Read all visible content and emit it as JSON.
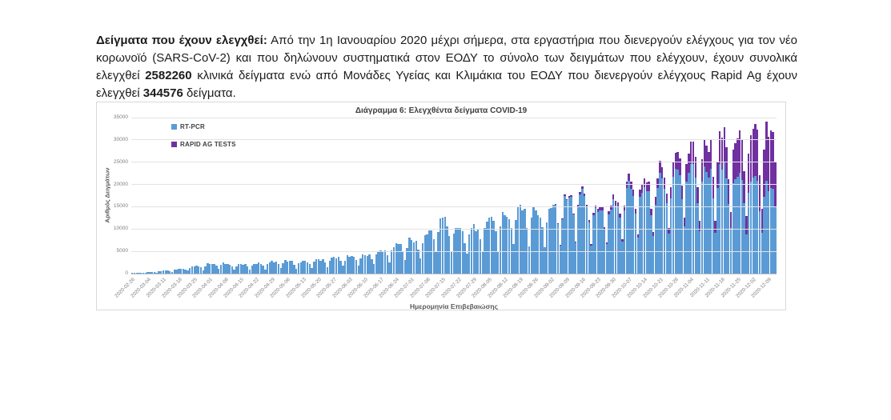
{
  "intro": {
    "segments": [
      {
        "text": "Δείγματα που έχουν ελεγχθεί:",
        "bold": true
      },
      {
        "text": " Από την 1η Ιανουαρίου 2020 μέχρι σήμερα, στα εργαστήρια που διενεργούν ελέγχους για τον νέο κορωνοϊό (SARS-CoV-2) και που δηλώνουν συστηματικά στον ΕΟΔΥ το σύνολο των δειγμάτων που ελέγχουν, έχουν συνολικά ελεγχθεί ",
        "bold": false
      },
      {
        "text": "2582260",
        "bold": true
      },
      {
        "text": " κλινικά δείγματα ενώ από Μονάδες Υγείας και Κλιμάκια του ΕΟΔΥ που διενεργούν ελέγχους Rapid Ag έχουν ελεγχθεί ",
        "bold": false
      },
      {
        "text": "344576",
        "bold": true
      },
      {
        "text": " δείγματα.",
        "bold": false
      }
    ]
  },
  "chart_data": {
    "type": "bar",
    "stacked": true,
    "title": "Διάγραμμα 6: Ελεγχθέντα δείγματα COVID-19",
    "xlabel": "Ημερομηνία Επιβεβαιώσης",
    "ylabel": "Αριθμός Δειγμάτων",
    "ylim": [
      0,
      35000
    ],
    "ytick_step": 5000,
    "grid": "horizontal",
    "legend_position": "top-left-inside",
    "x_start_date": "2020-02-26",
    "x_frequency": "daily bars, weekly tick labels",
    "days": 291,
    "start_weekday": 3,
    "weekday_multipliers": [
      0.42,
      0.82,
      1.0,
      1.0,
      0.97,
      0.93,
      0.72
    ],
    "x_tick_labels": [
      "2020-02-26",
      "2020-03-04",
      "2020-03-11",
      "2020-03-18",
      "2020-03-25",
      "2020-04-01",
      "2020-04-08",
      "2020-04-15",
      "2020-04-22",
      "2020-04-29",
      "2020-05-06",
      "2020-05-13",
      "2020-05-20",
      "2020-05-27",
      "2020-06-03",
      "2020-06-10",
      "2020-06-17",
      "2020-06-24",
      "2020-07-01",
      "2020-07-08",
      "2020-07-15",
      "2020-07-22",
      "2020-07-29",
      "2020-08-05",
      "2020-08-12",
      "2020-08-19",
      "2020-08-26",
      "2020-09-02",
      "2020-09-09",
      "2020-09-16",
      "2020-09-23",
      "2020-09-30",
      "2020-10-07",
      "2020-10-14",
      "2020-10-21",
      "2020-10-28",
      "2020-11-04",
      "2020-11-11",
      "2020-11-18",
      "2020-11-25",
      "2020-12-02",
      "2020-12-09"
    ],
    "series": [
      {
        "name": "RT-PCR",
        "color": "#5B9BD5",
        "weekly_values": [
          150,
          300,
          700,
          1100,
          1700,
          2200,
          2300,
          2100,
          2300,
          2600,
          3000,
          2700,
          3200,
          3600,
          4000,
          4300,
          5200,
          6500,
          7500,
          9000,
          13500,
          9800,
          10500,
          12000,
          13500,
          15500,
          14500,
          15500,
          16500,
          18500,
          14800,
          15500,
          20500,
          19000,
          21000,
          22000,
          24500,
          23000,
          24500,
          22500,
          21500,
          19500
        ]
      },
      {
        "name": "RAPID AG TESTS",
        "color": "#7030A0",
        "weekly_values": [
          0,
          0,
          0,
          0,
          0,
          0,
          0,
          0,
          0,
          0,
          0,
          0,
          0,
          0,
          0,
          0,
          0,
          0,
          0,
          0,
          0,
          0,
          0,
          0,
          0,
          0,
          0,
          0,
          300,
          500,
          700,
          1000,
          1500,
          2000,
          2500,
          3500,
          5000,
          6000,
          7500,
          9000,
          11000,
          13000
        ]
      }
    ]
  }
}
